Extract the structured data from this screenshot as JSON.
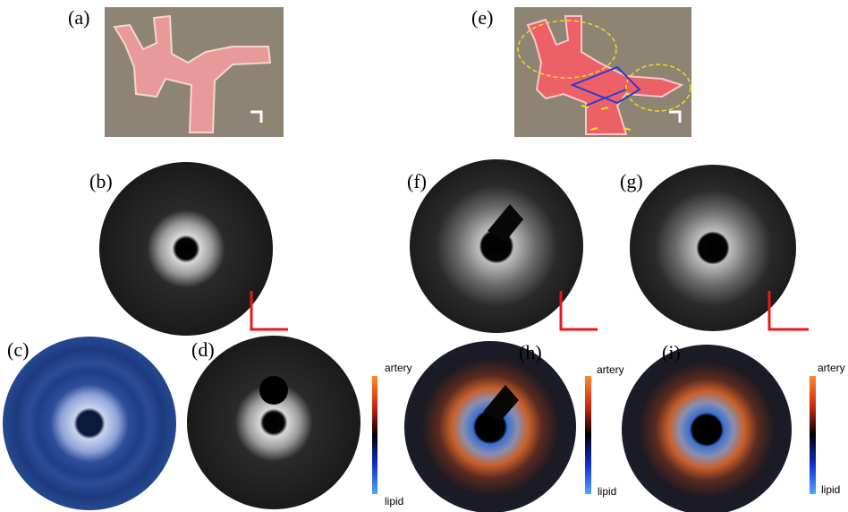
{
  "panels": [
    {
      "label": "(a)"
    },
    {
      "label": "(b)"
    },
    {
      "label": "(c)"
    },
    {
      "label": "(d)"
    },
    {
      "label": "(e)"
    },
    {
      "label": "(f)"
    },
    {
      "label": "(g)"
    },
    {
      "label": "(h)"
    },
    {
      "label": "(i)"
    }
  ],
  "colorbars": [
    {
      "top": "artery",
      "bottom": "lipid"
    },
    {
      "top": "artery",
      "bottom": "lipid"
    },
    {
      "top": "artery",
      "bottom": "lipid"
    }
  ]
}
